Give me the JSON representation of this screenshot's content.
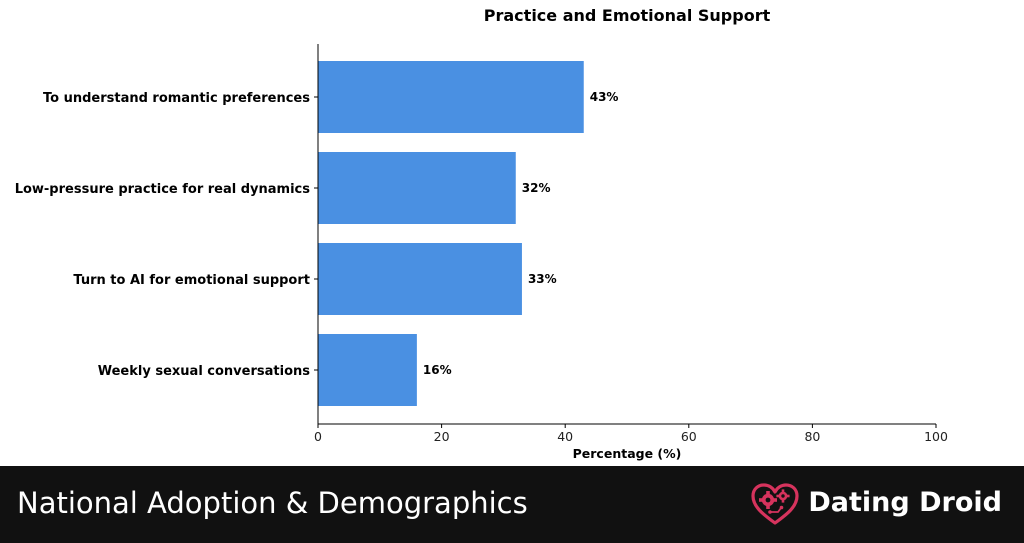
{
  "chart_data": {
    "type": "bar",
    "orientation": "horizontal",
    "title": "Practice and Emotional Support",
    "xlabel": "Percentage (%)",
    "ylabel": "",
    "xlim": [
      0,
      100
    ],
    "xticks": [
      "0",
      "20",
      "40",
      "60",
      "80",
      "100"
    ],
    "categories": [
      "To understand romantic preferences",
      "Low-pressure practice for real dynamics",
      "Turn to AI for emotional support",
      "Weekly sexual conversations"
    ],
    "values": [
      43,
      32,
      33,
      16
    ],
    "value_labels": [
      "43%",
      "32%",
      "33%",
      "16%"
    ],
    "bar_color": "#4a90e2",
    "grid": false,
    "legend": "none"
  },
  "footer": {
    "title": "National Adoption & Demographics",
    "brand_name": "Dating Droid",
    "background_color": "#111111",
    "logo_color": "#d6335d",
    "logo_icon": "heart-gear-icon"
  }
}
